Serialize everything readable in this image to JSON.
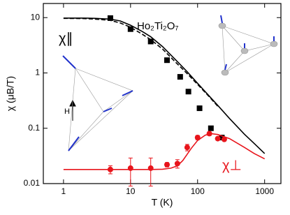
{
  "chart_data": {
    "type": "line",
    "x_label": "T (K)",
    "y_label": "χ (μB/T)",
    "xlim": [
      0.5,
      1750
    ],
    "ylim": [
      0.01,
      18
    ],
    "log_x": true,
    "log_y": true,
    "xticks": [
      1,
      10,
      100,
      1000
    ],
    "yticks": [
      0.01,
      0.1,
      1,
      10
    ],
    "annotations": {
      "compound": "Ho₂Ti₂O₇",
      "parallel": "χ∥",
      "perpendicular": "χ⊥",
      "field": "H"
    },
    "series": [
      {
        "color": "#000000",
        "marker": "square",
        "x": [
          5,
          10,
          20,
          35,
          55,
          73,
          107,
          158,
          230
        ],
        "values": [
          9.8,
          6.2,
          3.7,
          1.7,
          0.85,
          0.46,
          0.23,
          0.1,
          0.068
        ]
      },
      {
        "color": "#000000",
        "dash": false,
        "x": [
          1,
          2,
          3,
          5,
          7,
          10,
          15,
          20,
          30,
          50,
          70,
          100,
          150,
          200,
          300,
          500,
          700,
          1000
        ],
        "values": [
          9.8,
          9.8,
          9.7,
          9.4,
          8.7,
          7.3,
          5.6,
          4.5,
          3.0,
          1.6,
          1.05,
          0.65,
          0.38,
          0.26,
          0.15,
          0.078,
          0.053,
          0.035
        ]
      },
      {
        "color": "#000000",
        "dash": true,
        "x": [
          1,
          2,
          3,
          5,
          7,
          10,
          15,
          20,
          30,
          50,
          70,
          100,
          150,
          200
        ],
        "values": [
          9.7,
          9.6,
          9.4,
          8.9,
          8.0,
          6.7,
          5.0,
          4.0,
          2.7,
          1.45,
          0.97,
          0.62,
          0.37,
          0.25
        ]
      },
      {
        "color": "#e8141b",
        "marker": "circle",
        "x": [
          5,
          10,
          20,
          35,
          50,
          70,
          100,
          150,
          200,
          250
        ],
        "values": [
          0.018,
          0.019,
          0.019,
          0.022,
          0.023,
          0.045,
          0.068,
          0.08,
          0.065,
          0.063
        ],
        "errors": [
          0.003,
          0.01,
          0.01,
          0.002,
          0.004,
          0.006,
          0.006,
          0.006,
          0.004,
          0.004
        ]
      },
      {
        "color": "#e8141b",
        "dash": false,
        "x": [
          1,
          10,
          20,
          30,
          40,
          50,
          60,
          70,
          80,
          100,
          130,
          160,
          200,
          300,
          500,
          700,
          1000
        ],
        "values": [
          0.018,
          0.018,
          0.018,
          0.0182,
          0.019,
          0.021,
          0.026,
          0.034,
          0.043,
          0.06,
          0.075,
          0.08,
          0.077,
          0.065,
          0.045,
          0.035,
          0.028
        ]
      }
    ]
  }
}
